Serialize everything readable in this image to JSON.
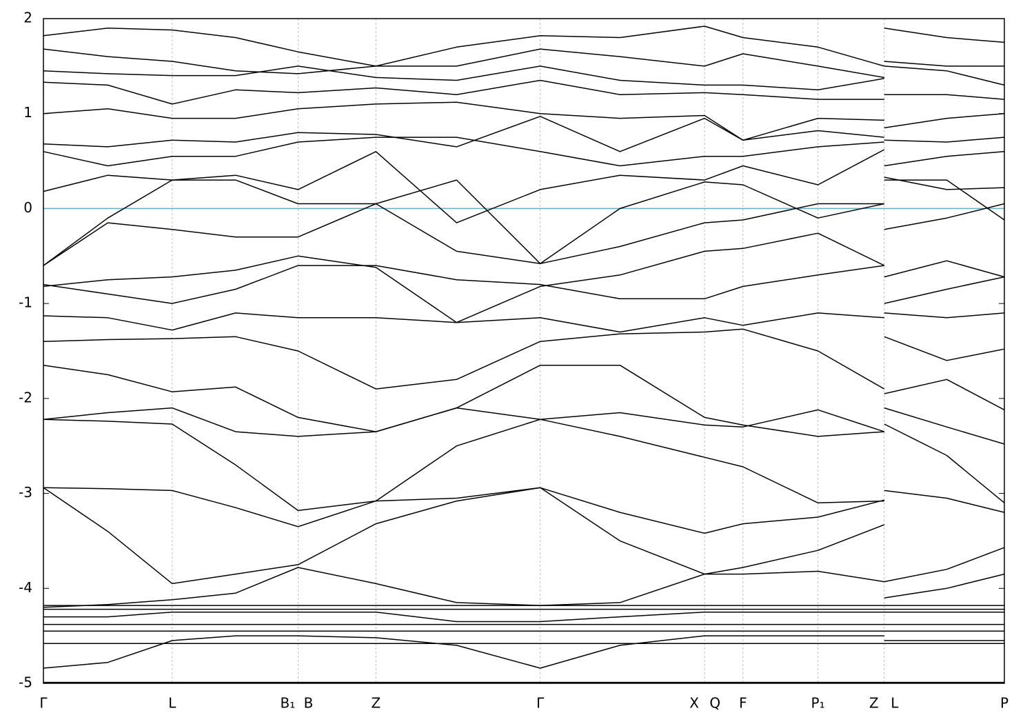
{
  "chart_data": {
    "type": "line",
    "color": "#000000",
    "xlim": [
      0,
      1
    ],
    "ylim": [
      -5,
      2
    ],
    "yticks": [
      -5,
      -4,
      -3,
      -2,
      -1,
      0,
      1,
      2
    ],
    "xticks": [
      {
        "value": 0,
        "label": "Γ"
      },
      {
        "value": 0.134,
        "label": "L"
      },
      {
        "value": 0.265,
        "label": "B₁"
      },
      {
        "value": 0.2651,
        "label": "B"
      },
      {
        "value": 0.346,
        "label": "Z"
      },
      {
        "value": 0.517,
        "label": "Γ"
      },
      {
        "value": 0.688,
        "label": "X"
      },
      {
        "value": 0.6881,
        "label": "Q"
      },
      {
        "value": 0.728,
        "label": "F"
      },
      {
        "value": 0.806,
        "label": "P₁"
      },
      {
        "value": 0.875,
        "label": "Z"
      },
      {
        "value": 0.8751,
        "label": "L"
      },
      {
        "value": 1,
        "label": "P"
      }
    ],
    "grid": true,
    "hline": {
      "value": 0,
      "color": "#5fb0c8"
    },
    "x": [
      0,
      0.067,
      0.134,
      0.2,
      0.265,
      0.346,
      0.43,
      0.517,
      0.6,
      0.688,
      0.728,
      0.806,
      0.875,
      0.875,
      0.875,
      0.94,
      1
    ],
    "series": [
      {
        "values": [
          -4.99,
          -4.99,
          -4.99,
          -4.99,
          -4.99,
          -4.99,
          -4.99,
          -4.99,
          -4.99,
          -4.99,
          -4.99,
          -4.99,
          -4.99,
          null,
          -4.99,
          -4.99,
          -4.99
        ]
      },
      {
        "values": [
          -4.84,
          -4.78,
          -4.55,
          -4.5,
          -4.5,
          -4.52,
          -4.6,
          -4.84,
          -4.6,
          -4.5,
          -4.5,
          -4.5,
          -4.5,
          null,
          -4.55,
          -4.55,
          -4.55
        ]
      },
      {
        "values": [
          -4.58,
          -4.58,
          -4.58,
          -4.58,
          -4.58,
          -4.58,
          -4.58,
          -4.58,
          -4.58,
          -4.58,
          -4.58,
          -4.58,
          -4.58,
          null,
          -4.58,
          -4.58,
          -4.58
        ]
      },
      {
        "values": [
          -4.45,
          -4.45,
          -4.45,
          -4.45,
          -4.45,
          -4.45,
          -4.45,
          -4.45,
          -4.45,
          -4.45,
          -4.45,
          -4.45,
          -4.45,
          null,
          -4.45,
          -4.45,
          -4.45
        ]
      },
      {
        "values": [
          -4.38,
          -4.38,
          -4.38,
          -4.38,
          -4.38,
          -4.38,
          -4.38,
          -4.38,
          -4.38,
          -4.38,
          -4.38,
          -4.38,
          -4.38,
          null,
          -4.38,
          -4.38,
          -4.38
        ]
      },
      {
        "values": [
          -4.3,
          -4.3,
          -4.25,
          -4.25,
          -4.25,
          -4.25,
          -4.35,
          -4.35,
          -4.3,
          -4.25,
          -4.25,
          -4.25,
          -4.25,
          null,
          -4.25,
          -4.25,
          -4.25
        ]
      },
      {
        "values": [
          -4.22,
          -4.22,
          -4.22,
          -4.22,
          -4.22,
          -4.22,
          -4.22,
          -4.22,
          -4.22,
          -4.22,
          -4.22,
          -4.22,
          -4.22,
          null,
          -4.22,
          -4.22,
          -4.22
        ]
      },
      {
        "values": [
          -4.18,
          -4.18,
          -4.18,
          -4.18,
          -4.18,
          -4.18,
          -4.18,
          -4.18,
          -4.18,
          -4.18,
          -4.18,
          -4.18,
          -4.18,
          null,
          -4.18,
          -4.18,
          -4.18
        ]
      },
      {
        "values": [
          -4.2,
          -4.17,
          -4.12,
          -4.05,
          -3.78,
          -3.95,
          -4.15,
          -4.18,
          -4.15,
          -3.85,
          -3.78,
          -3.6,
          -3.33,
          null,
          -4.1,
          -4.0,
          -3.85
        ]
      },
      {
        "values": [
          -2.94,
          -3.4,
          -3.95,
          -3.85,
          -3.75,
          -3.32,
          -3.08,
          -2.94,
          -3.5,
          -3.85,
          -3.85,
          -3.82,
          -3.93,
          null,
          -3.93,
          -3.8,
          -3.57
        ]
      },
      {
        "values": [
          -2.94,
          -2.95,
          -2.97,
          -3.15,
          -3.35,
          -3.08,
          -3.05,
          -2.94,
          -3.2,
          -3.42,
          -3.32,
          -3.25,
          -3.07,
          null,
          -2.97,
          -3.05,
          -3.2
        ]
      },
      {
        "values": [
          -2.22,
          -2.24,
          -2.27,
          -2.7,
          -3.18,
          -3.08,
          -2.5,
          -2.22,
          -2.4,
          -2.62,
          -2.72,
          -3.1,
          -3.08,
          null,
          -2.27,
          -2.6,
          -3.1
        ]
      },
      {
        "values": [
          -2.22,
          -2.15,
          -2.1,
          -2.35,
          -2.4,
          -2.35,
          -2.1,
          -2.22,
          -2.15,
          -2.28,
          -2.3,
          -2.12,
          -2.35,
          null,
          -2.1,
          -2.3,
          -2.48
        ]
      },
      {
        "values": [
          -1.65,
          -1.75,
          -1.93,
          -1.88,
          -2.2,
          -2.35,
          -2.1,
          -1.65,
          -1.65,
          -2.2,
          -2.28,
          -2.4,
          -2.35,
          null,
          -1.95,
          -1.8,
          -2.12
        ]
      },
      {
        "values": [
          -1.4,
          -1.38,
          -1.37,
          -1.35,
          -1.5,
          -1.9,
          -1.8,
          -1.4,
          -1.32,
          -1.3,
          -1.27,
          -1.5,
          -1.9,
          null,
          -1.35,
          -1.6,
          -1.48
        ]
      },
      {
        "values": [
          -1.13,
          -1.15,
          -1.28,
          -1.1,
          -1.15,
          -1.15,
          -1.2,
          -1.15,
          -1.3,
          -1.15,
          -1.23,
          -1.1,
          -1.15,
          null,
          -1.1,
          -1.15,
          -1.1
        ]
      },
      {
        "values": [
          -0.8,
          -0.9,
          -1.0,
          -0.85,
          -0.6,
          -0.6,
          -0.75,
          -0.8,
          -0.95,
          -0.95,
          -0.82,
          -0.7,
          -0.6,
          null,
          -1.0,
          -0.85,
          -0.72
        ]
      },
      {
        "values": [
          -0.82,
          -0.75,
          -0.72,
          -0.65,
          -0.5,
          -0.62,
          -1.2,
          -0.82,
          -0.7,
          -0.45,
          -0.42,
          -0.26,
          -0.6,
          null,
          -0.72,
          -0.55,
          -0.72
        ]
      },
      {
        "values": [
          -0.6,
          -0.15,
          -0.22,
          -0.3,
          -0.3,
          0.05,
          -0.45,
          -0.58,
          -0.4,
          -0.15,
          -0.12,
          0.05,
          0.05,
          null,
          -0.22,
          -0.1,
          0.05
        ]
      },
      {
        "values": [
          -0.6,
          -0.1,
          0.3,
          0.3,
          0.05,
          0.05,
          0.3,
          -0.58,
          0.0,
          0.28,
          0.25,
          -0.1,
          0.05,
          null,
          0.3,
          0.3,
          -0.12
        ]
      },
      {
        "values": [
          0.18,
          0.35,
          0.3,
          0.35,
          0.2,
          0.6,
          -0.15,
          0.2,
          0.35,
          0.3,
          0.45,
          0.25,
          0.62,
          null,
          0.33,
          0.2,
          0.22
        ]
      },
      {
        "values": [
          0.6,
          0.45,
          0.55,
          0.55,
          0.7,
          0.75,
          0.75,
          0.6,
          0.45,
          0.55,
          0.55,
          0.65,
          0.7,
          null,
          0.45,
          0.55,
          0.6
        ]
      },
      {
        "values": [
          0.68,
          0.65,
          0.72,
          0.7,
          0.8,
          0.78,
          0.65,
          0.97,
          0.6,
          0.95,
          0.72,
          0.82,
          0.75,
          null,
          0.72,
          0.7,
          0.75
        ]
      },
      {
        "values": [
          1.0,
          1.05,
          0.95,
          0.95,
          1.05,
          1.1,
          1.12,
          1.0,
          0.95,
          0.98,
          0.72,
          0.95,
          0.93,
          null,
          0.85,
          0.95,
          1.0
        ]
      },
      {
        "values": [
          1.33,
          1.3,
          1.1,
          1.25,
          1.22,
          1.27,
          1.2,
          1.35,
          1.2,
          1.22,
          1.2,
          1.15,
          1.15,
          null,
          1.2,
          1.2,
          1.15
        ]
      },
      {
        "values": [
          1.45,
          1.42,
          1.4,
          1.4,
          1.5,
          1.38,
          1.35,
          1.5,
          1.35,
          1.3,
          1.3,
          1.25,
          1.37,
          null,
          1.5,
          1.45,
          1.3
        ]
      },
      {
        "values": [
          1.68,
          1.6,
          1.55,
          1.45,
          1.42,
          1.5,
          1.5,
          1.68,
          1.6,
          1.5,
          1.63,
          1.5,
          1.38,
          null,
          1.55,
          1.5,
          1.5
        ]
      },
      {
        "values": [
          1.82,
          1.9,
          1.88,
          1.8,
          1.65,
          1.5,
          1.7,
          1.82,
          1.8,
          1.92,
          1.8,
          1.7,
          1.5,
          null,
          1.9,
          1.8,
          1.75
        ]
      }
    ]
  }
}
